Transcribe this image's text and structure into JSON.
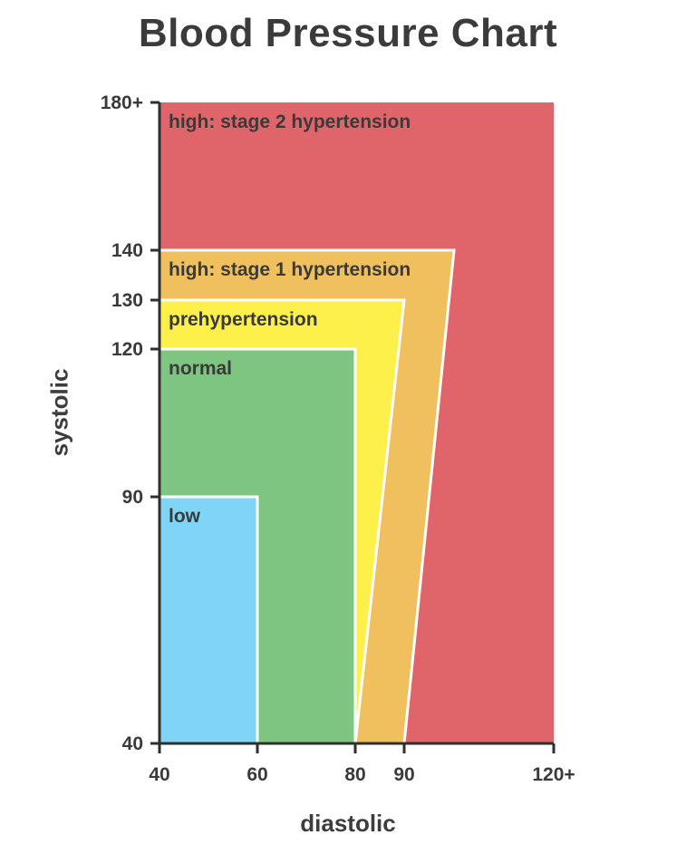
{
  "chart_data": {
    "type": "area",
    "title": "Blood Pressure Chart",
    "xlabel": "diastolic",
    "ylabel": "systolic",
    "x_ticks": [
      {
        "value": 40,
        "label": "40"
      },
      {
        "value": 60,
        "label": "60"
      },
      {
        "value": 80,
        "label": "80"
      },
      {
        "value": 90,
        "label": "90"
      },
      {
        "value": 120,
        "label": "120+"
      }
    ],
    "y_ticks": [
      {
        "value": 40,
        "label": "40"
      },
      {
        "value": 90,
        "label": "90"
      },
      {
        "value": 120,
        "label": "120"
      },
      {
        "value": 130,
        "label": "130"
      },
      {
        "value": 140,
        "label": "140"
      },
      {
        "value": 180,
        "label": "180+"
      }
    ],
    "xlim": [
      40,
      120
    ],
    "ylim": [
      40,
      180
    ],
    "grid": false,
    "regions": [
      {
        "name": "high: stage 2 hypertension",
        "color": "#e0656b",
        "polygon": [
          [
            40,
            40
          ],
          [
            120,
            40
          ],
          [
            120,
            180
          ],
          [
            40,
            180
          ]
        ]
      },
      {
        "name": "high: stage 1 hypertension",
        "color": "#f0c05e",
        "polygon": [
          [
            40,
            40
          ],
          [
            90,
            40
          ],
          [
            100,
            140
          ],
          [
            40,
            140
          ]
        ]
      },
      {
        "name": "prehypertension",
        "color": "#fdf04a",
        "polygon": [
          [
            40,
            40
          ],
          [
            80,
            40
          ],
          [
            90,
            130
          ],
          [
            40,
            130
          ]
        ]
      },
      {
        "name": "normal",
        "color": "#7dc580",
        "polygon": [
          [
            40,
            40
          ],
          [
            80,
            40
          ],
          [
            80,
            120
          ],
          [
            40,
            120
          ]
        ]
      },
      {
        "name": "low",
        "color": "#80d4f6",
        "polygon": [
          [
            40,
            40
          ],
          [
            60,
            40
          ],
          [
            60,
            90
          ],
          [
            40,
            90
          ]
        ]
      }
    ]
  }
}
